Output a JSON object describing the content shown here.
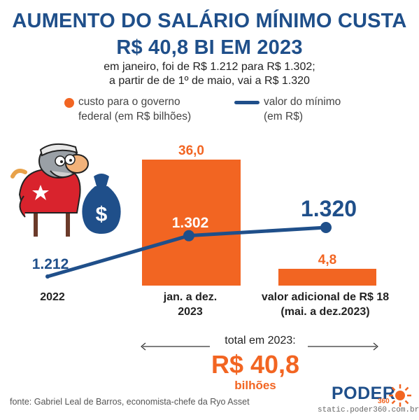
{
  "title": {
    "line1": "AUMENTO DO SALÁRIO MÍNIMO CUSTA",
    "line2": "R$ 40,8 BI EM 2023"
  },
  "subtitle": {
    "line1": "em janeiro, foi de R$ 1.212 para R$ 1.302;",
    "line2": "a partir de de 1º de maio, vai a R$ 1.320"
  },
  "legend": {
    "cost_line1": "custo para o governo",
    "cost_line2": "federal (em R$ bilhões)",
    "wage_line1": "valor do mínimo",
    "wage_line2": "(em R$)"
  },
  "colors": {
    "cost": "#f26522",
    "wage": "#1f4f8a",
    "title": "#1f4f8a"
  },
  "chart_data": {
    "type": "bar",
    "categories": [
      "2022",
      "jan. a dez. 2023",
      "valor adicional de R$ 18 (mai. a dez.2023)"
    ],
    "series": [
      {
        "name": "custo para o governo federal (em R$ bilhões)",
        "values": [
          null,
          36.0,
          4.8
        ],
        "labels": [
          "",
          "36,0",
          "4,8"
        ]
      },
      {
        "name": "valor do mínimo (em R$)",
        "values": [
          1212,
          1302,
          1320
        ],
        "labels": [
          "1.212",
          "1.302",
          "1.320"
        ]
      }
    ],
    "category_labels": [
      {
        "line1": "2022",
        "line2": ""
      },
      {
        "line1": "jan. a dez.",
        "line2": "2023"
      },
      {
        "line1": "valor adicional de R$ 18",
        "line2": "(mai. a dez.2023)"
      }
    ]
  },
  "total": {
    "label": "total em 2023:",
    "value": "R$ 40,8",
    "unit": "bilhões"
  },
  "source": "fonte: Gabriel Leal de Barros, economista-chefe da Ryo Asset",
  "brand": "PODER",
  "brand_sub": "360",
  "site": "static.poder360.com.br",
  "icons": {
    "cartoon": "man-cartoon-icon",
    "bag": "money-bag-icon",
    "brand": "sun-logo-icon"
  }
}
